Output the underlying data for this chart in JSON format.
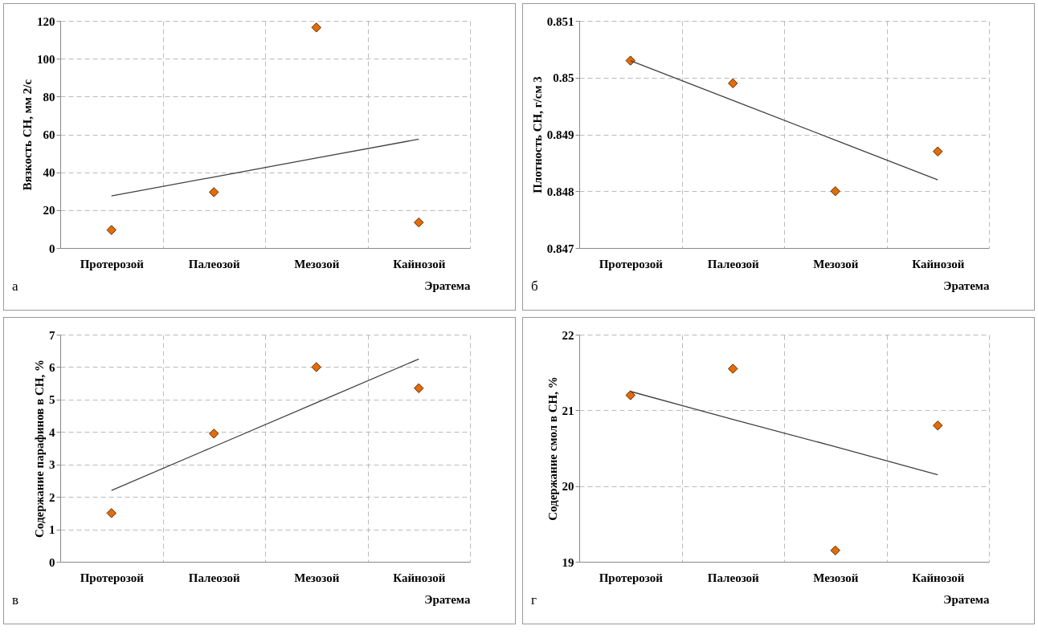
{
  "chart_data": [
    {
      "type": "scatter",
      "ylabel": "Вязкость СН, мм 2/с",
      "xlabel": "Эратема",
      "annotations": [
        "а"
      ],
      "categories": [
        "Протерозой",
        "Палеозой",
        "Мезозой",
        "Кайнозой"
      ],
      "ylim": [
        0,
        120
      ],
      "yticks": [
        0,
        20,
        40,
        60,
        80,
        100,
        120
      ],
      "grid": true,
      "series": [
        {
          "marker": "diamond",
          "color": "#e36c09",
          "values": [
            9.5,
            29.5,
            116.5,
            13.5
          ]
        },
        {
          "type": "line",
          "marker": "none",
          "color": "#404040",
          "values": [
            27.5,
            37.5,
            47.5,
            57.5
          ]
        }
      ]
    },
    {
      "type": "scatter",
      "ylabel": "Плотность СН, г/см 3",
      "xlabel": "Эратема",
      "annotations": [
        "б"
      ],
      "categories": [
        "Протерозой",
        "Палеозой",
        "Мезозой",
        "Кайнозой"
      ],
      "ylim": [
        0.847,
        0.851
      ],
      "yticks": [
        0.847,
        0.848,
        0.849,
        0.85,
        0.851
      ],
      "grid": true,
      "series": [
        {
          "marker": "diamond",
          "color": "#e36c09",
          "values": [
            0.8503,
            0.8499,
            0.848,
            0.8487
          ]
        },
        {
          "type": "line",
          "marker": "none",
          "color": "#404040",
          "values": [
            0.8503,
            0.8496,
            0.8489,
            0.8482
          ]
        }
      ]
    },
    {
      "type": "scatter",
      "ylabel": "Содержание парафинов в СН, %",
      "xlabel": "Эратема",
      "annotations": [
        "в"
      ],
      "categories": [
        "Протерозой",
        "Палеозой",
        "Мезозой",
        "Кайнозой"
      ],
      "ylim": [
        0,
        7
      ],
      "yticks": [
        0,
        1,
        2,
        3,
        4,
        5,
        6,
        7
      ],
      "grid": true,
      "series": [
        {
          "marker": "diamond",
          "color": "#e36c09",
          "values": [
            1.5,
            3.95,
            6.0,
            5.35
          ]
        },
        {
          "type": "line",
          "marker": "none",
          "color": "#404040",
          "values": [
            2.2,
            3.55,
            4.9,
            6.25
          ]
        }
      ]
    },
    {
      "type": "scatter",
      "ylabel": "Содержание смол в СН, %",
      "xlabel": "Эратема",
      "annotations": [
        "г"
      ],
      "categories": [
        "Протерозой",
        "Палеозой",
        "Мезозой",
        "Кайнозой"
      ],
      "ylim": [
        19,
        22
      ],
      "yticks": [
        19,
        20,
        21,
        22
      ],
      "grid": true,
      "series": [
        {
          "marker": "diamond",
          "color": "#e36c09",
          "values": [
            21.2,
            21.55,
            19.15,
            20.8
          ]
        },
        {
          "type": "line",
          "marker": "none",
          "color": "#404040",
          "values": [
            21.25,
            20.88,
            20.52,
            20.15
          ]
        }
      ]
    }
  ]
}
